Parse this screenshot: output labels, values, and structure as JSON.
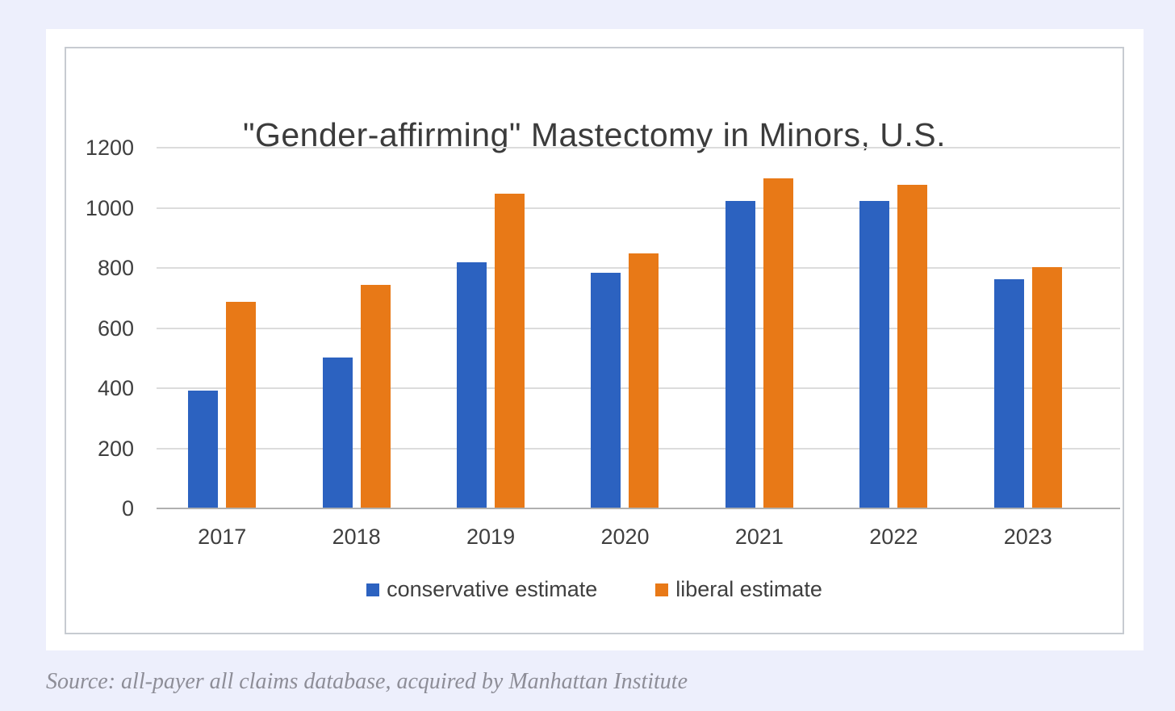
{
  "page": {
    "background_color": "#edeffc",
    "card_color": "#ffffff",
    "chart_border_color": "#c7cbd1"
  },
  "chart_data": {
    "type": "bar",
    "title": "\"Gender-affirming\" Mastectomy in Minors, U.S.",
    "categories": [
      "2017",
      "2018",
      "2019",
      "2020",
      "2021",
      "2022",
      "2023"
    ],
    "series": [
      {
        "name": "conservative estimate",
        "color": "#2c62c0",
        "values": [
          390,
          500,
          815,
          780,
          1020,
          1020,
          760
        ]
      },
      {
        "name": "liberal estimate",
        "color": "#e87917",
        "values": [
          685,
          740,
          1045,
          845,
          1095,
          1075,
          800
        ]
      }
    ],
    "xlabel": "",
    "ylabel": "",
    "ylim": [
      0,
      1200
    ],
    "yticks": [
      0,
      200,
      400,
      600,
      800,
      1000,
      1200
    ],
    "grid": true,
    "legend_position": "bottom"
  },
  "source_note": "Source: all-payer all claims database, acquired by Manhattan Institute"
}
